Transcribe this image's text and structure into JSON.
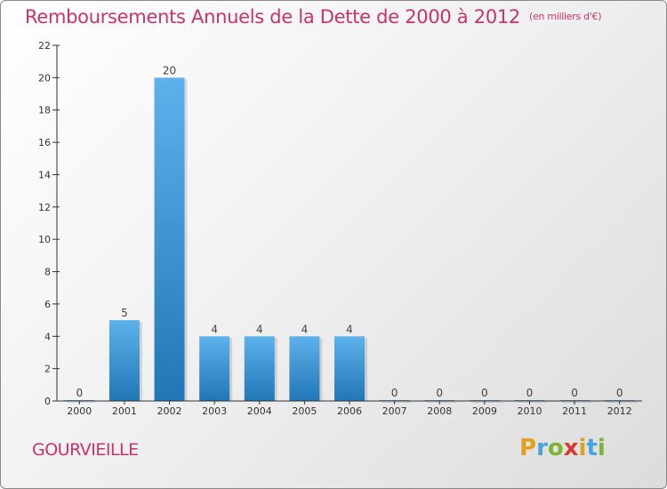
{
  "title": "Remboursements Annuels de la Dette de 2000 à 2012",
  "title_unit": "(en milliers d'€)",
  "commune": "GOURVIEILLE",
  "logo": {
    "letters": [
      "P",
      "r",
      "o",
      "x",
      "i",
      "t",
      "i"
    ],
    "colors": [
      "#e0a21e",
      "#4aa3df",
      "#7fb234",
      "#d83a2f",
      "#e0a21e",
      "#4aa3df",
      "#7fb234"
    ]
  },
  "colors": {
    "title": "#c8336e",
    "bar_top": "#5db2ec",
    "bar_bottom": "#2176b5",
    "axis": "#333333"
  },
  "chart_data": {
    "type": "bar",
    "categories": [
      "2000",
      "2001",
      "2002",
      "2003",
      "2004",
      "2005",
      "2006",
      "2007",
      "2008",
      "2009",
      "2010",
      "2011",
      "2012"
    ],
    "values": [
      0,
      5,
      20,
      4,
      4,
      4,
      4,
      0,
      0,
      0,
      0,
      0,
      0
    ],
    "data_labels": [
      "0",
      "5",
      "20",
      "4",
      "4",
      "4",
      "4",
      "0",
      "0",
      "0",
      "0",
      "0",
      "0"
    ],
    "title": "Remboursements Annuels de la Dette de 2000 à 2012",
    "ylim": [
      0,
      22
    ],
    "yticks": [
      0,
      2,
      4,
      6,
      8,
      10,
      12,
      14,
      16,
      18,
      20,
      22
    ],
    "grid": false,
    "legend": "none"
  }
}
